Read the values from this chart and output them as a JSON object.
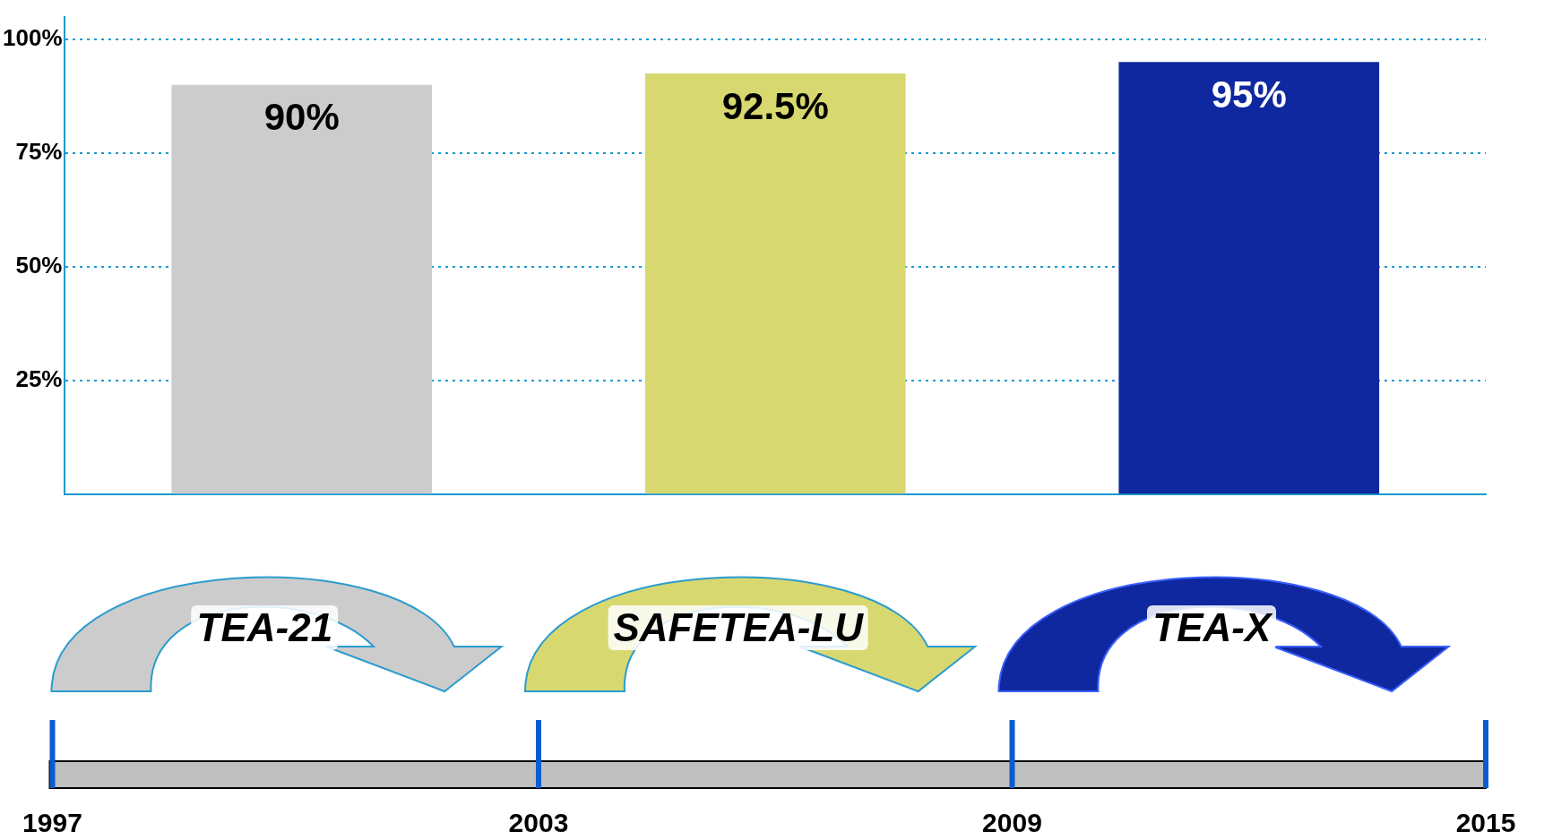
{
  "chart_data": {
    "type": "bar",
    "categories": [
      null,
      null,
      null
    ],
    "values": [
      90,
      92.5,
      95
    ],
    "colors": [
      "#cccccc",
      "#d8d870",
      "#0f28a0"
    ],
    "value_labels": [
      "90%",
      "92.5%",
      "95%"
    ],
    "ylim": [
      0,
      105
    ],
    "yticks": [
      {
        "value": 25,
        "label": "25%"
      },
      {
        "value": 50,
        "label": "50%"
      },
      {
        "value": 75,
        "label": "75%"
      },
      {
        "value": 100,
        "label": "100%"
      }
    ],
    "grid": "y",
    "legend": false,
    "annotations": [
      "TEA-21",
      "SAFETEA-LU",
      "TEA-X",
      "1997",
      "2003",
      "2009",
      "2015"
    ]
  }
}
